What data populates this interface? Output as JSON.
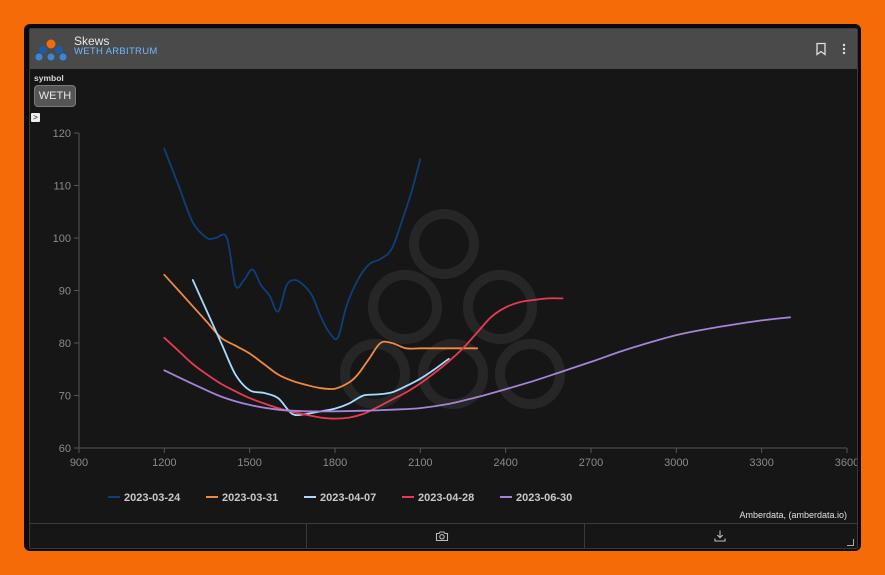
{
  "header": {
    "title": "Skews",
    "subtitle": "WETH ARBITRUM"
  },
  "controls": {
    "symbol_label": "symbol",
    "symbol_value": "WETH",
    "expand_glyph": ">"
  },
  "credit": "Amberdata, (amberdata.io)",
  "icons": {
    "logo": "amberdata-logo",
    "bookmark": "bookmark-icon",
    "menu": "kebab-menu-icon",
    "camera": "camera-icon",
    "download": "download-icon"
  },
  "chart_data": {
    "type": "line",
    "xlim": [
      900,
      3600
    ],
    "ylim": [
      60,
      120
    ],
    "xticks": [
      900,
      1200,
      1500,
      1800,
      2100,
      2400,
      2700,
      3000,
      3300,
      3600
    ],
    "yticks": [
      60,
      70,
      80,
      90,
      100,
      110,
      120
    ],
    "grid": false,
    "legend_position": "bottom",
    "series": [
      {
        "name": "2023-03-24",
        "color": "#0e3f7a",
        "x": [
          1200,
          1250,
          1300,
          1350,
          1380,
          1420,
          1450,
          1480,
          1510,
          1540,
          1570,
          1600,
          1630,
          1660,
          1690,
          1720,
          1750,
          1780,
          1810,
          1840,
          1880,
          1920,
          1960,
          2000,
          2040,
          2070,
          2100
        ],
        "y": [
          117,
          110,
          103,
          100,
          100,
          100,
          91,
          92,
          94,
          91,
          89,
          86,
          91,
          92,
          91,
          89,
          85,
          82,
          81,
          87,
          92,
          95,
          96,
          98,
          104,
          109,
          115
        ]
      },
      {
        "name": "2023-03-31",
        "color": "#f08a3e",
        "x": [
          1200,
          1250,
          1300,
          1350,
          1400,
          1450,
          1500,
          1550,
          1600,
          1650,
          1700,
          1750,
          1800,
          1850,
          1880,
          1920,
          1960,
          2000,
          2050,
          2100,
          2150,
          2200,
          2250,
          2300
        ],
        "y": [
          93,
          90,
          87,
          84,
          81,
          79.5,
          78,
          76,
          74,
          72.8,
          72,
          71.4,
          71.3,
          72.5,
          74,
          77,
          80,
          80,
          79,
          79,
          79,
          79,
          79,
          79
        ]
      },
      {
        "name": "2023-04-07",
        "color": "#a8dcff",
        "x": [
          1300,
          1350,
          1400,
          1450,
          1500,
          1550,
          1600,
          1650,
          1700,
          1750,
          1800,
          1850,
          1900,
          1950,
          2000,
          2050,
          2100,
          2150,
          2200
        ],
        "y": [
          92,
          86,
          80,
          74,
          71,
          70.5,
          69.5,
          66.5,
          66.5,
          67,
          67.5,
          68.5,
          70,
          70.2,
          70.6,
          71.8,
          73.2,
          75,
          77
        ]
      },
      {
        "name": "2023-04-28",
        "color": "#e63b55",
        "x": [
          1200,
          1250,
          1300,
          1350,
          1400,
          1450,
          1500,
          1550,
          1600,
          1650,
          1700,
          1750,
          1800,
          1850,
          1900,
          1950,
          2000,
          2050,
          2100,
          2150,
          2200,
          2250,
          2300,
          2350,
          2400,
          2450,
          2500,
          2550,
          2600
        ],
        "y": [
          81,
          78.5,
          76,
          74,
          72.2,
          70.8,
          69.5,
          68.5,
          67.6,
          66.9,
          66.3,
          65.8,
          65.6,
          65.8,
          66.5,
          67.8,
          69.2,
          70.6,
          72.3,
          74.3,
          76.5,
          79,
          82,
          85,
          86.8,
          87.8,
          88.2,
          88.5,
          88.5
        ]
      },
      {
        "name": "2023-06-30",
        "color": "#a584d8",
        "x": [
          1200,
          1300,
          1400,
          1500,
          1600,
          1700,
          1800,
          1900,
          2000,
          2100,
          2200,
          2300,
          2400,
          2500,
          2600,
          2700,
          2800,
          2900,
          3000,
          3100,
          3200,
          3300,
          3400
        ],
        "y": [
          74.8,
          72.2,
          69.8,
          68.2,
          67.3,
          67,
          67,
          67.1,
          67.3,
          67.6,
          68.4,
          69.7,
          71.2,
          72.8,
          74.6,
          76.4,
          78.3,
          80,
          81.5,
          82.6,
          83.5,
          84.3,
          84.9
        ]
      }
    ]
  }
}
